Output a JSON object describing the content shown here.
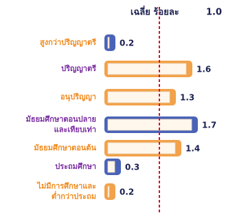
{
  "chart_data": {
    "type": "hbar",
    "title": "เฉลี่ย  ร้อยละ",
    "average": {
      "value": 1.0,
      "label": "1.0"
    },
    "categories": [
      [
        "สูงกว่าปริญญาตรี"
      ],
      [
        "ปริญญาตรี"
      ],
      [
        "อนุปริญญา"
      ],
      [
        "มัธยมศึกษาตอนปลาย",
        "และเทียบเท่า"
      ],
      [
        "มัธยมศึกษาตอนต้น"
      ],
      [
        "ประถมศึกษา"
      ],
      [
        "ไม่มีการศึกษาและ",
        "ต่ำกว่าประถม"
      ]
    ],
    "values": [
      0.2,
      1.6,
      1.3,
      1.7,
      1.4,
      0.3,
      0.2
    ],
    "colors": [
      "#4a63b8",
      "#f2a24a",
      "#f2a24a",
      "#4a63b8",
      "#f2a24a",
      "#4a63b8",
      "#f2a24a"
    ],
    "label_colors": [
      "#f08a1c",
      "#7a2ea0",
      "#f08a1c",
      "#7a2ea0",
      "#f08a1c",
      "#7a2ea0",
      "#f08a1c"
    ],
    "xlim": [
      0,
      2.2
    ]
  }
}
